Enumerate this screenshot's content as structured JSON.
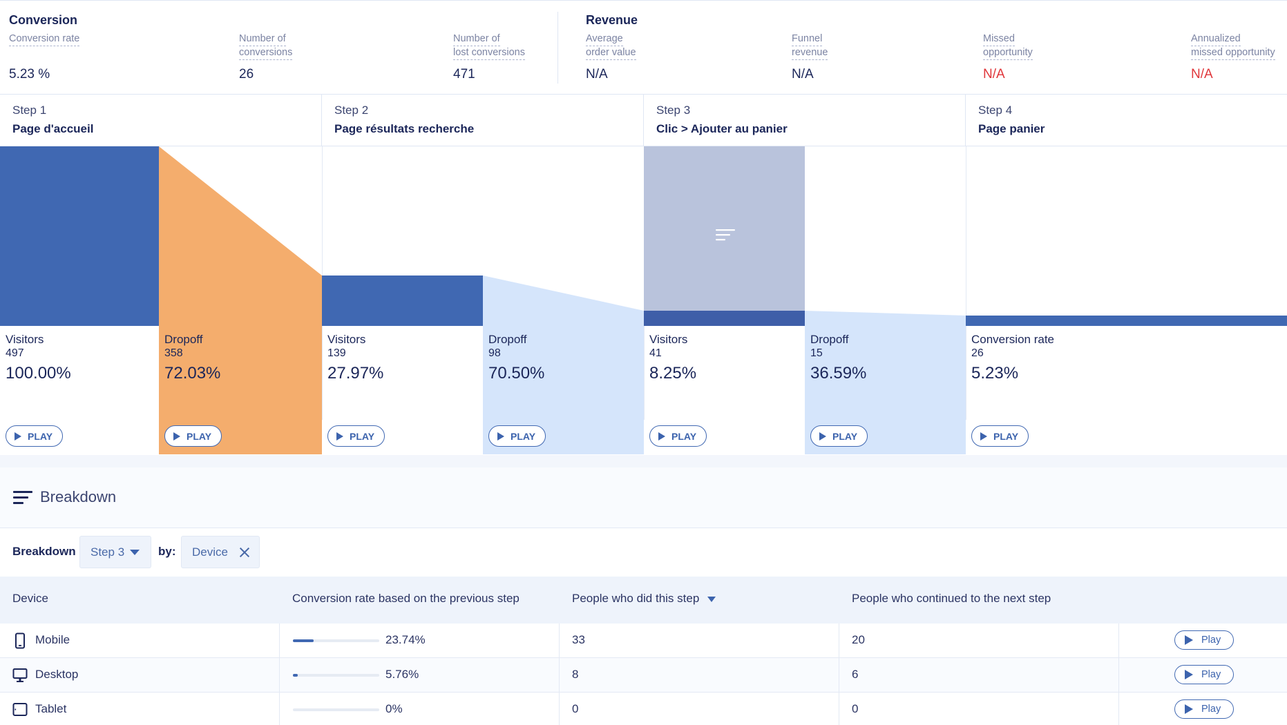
{
  "metrics": {
    "conversion": {
      "title": "Conversion",
      "items": [
        {
          "label_l1": "Conversion rate",
          "label_l2": "",
          "value": "5.23 %"
        },
        {
          "label_l1": "Number of",
          "label_l2": "conversions",
          "value": "26"
        },
        {
          "label_l1": "Number of",
          "label_l2": "lost conversions",
          "value": "471"
        }
      ]
    },
    "revenue": {
      "title": "Revenue",
      "items": [
        {
          "label_l1": "Average",
          "label_l2": "order value",
          "value": "N/A"
        },
        {
          "label_l1": "Funnel",
          "label_l2": "revenue",
          "value": "N/A"
        },
        {
          "label_l1": "Missed",
          "label_l2": "opportunity",
          "value": "N/A"
        },
        {
          "label_l1": "Annualized",
          "label_l2": "missed opportunity",
          "value": "N/A"
        }
      ]
    },
    "colors": {
      "negative": "#e0363a"
    }
  },
  "funnel": {
    "play_label": "PLAY",
    "colors": {
      "visitors": "#4068b2",
      "dropoff_main": "#f4ad6d",
      "dropoff": "#d5e5fb",
      "breakdown_selected": "#b9c3dc"
    },
    "steps": [
      {
        "step": "Step 1",
        "name": "Page d'accueil"
      },
      {
        "step": "Step 2",
        "name": "Page résultats recherche"
      },
      {
        "step": "Step 3",
        "name": "Clic > Ajouter au panier"
      },
      {
        "step": "Step 4",
        "name": "Page panier"
      }
    ],
    "stats": [
      {
        "label": "Visitors",
        "count": "497",
        "pct": "100.00%"
      },
      {
        "label": "Dropoff",
        "count": "358",
        "pct": "72.03%"
      },
      {
        "label": "Visitors",
        "count": "139",
        "pct": "27.97%"
      },
      {
        "label": "Dropoff",
        "count": "98",
        "pct": "70.50%"
      },
      {
        "label": "Visitors",
        "count": "41",
        "pct": "8.25%"
      },
      {
        "label": "Dropoff",
        "count": "15",
        "pct": "36.59%"
      },
      {
        "label": "Conversion rate",
        "count": "26",
        "pct": "5.23%"
      }
    ]
  },
  "breakdown": {
    "title": "Breakdown",
    "filter_label": "Breakdown",
    "step_select": "Step 3",
    "by_label": "by:",
    "dimension": "Device",
    "table": {
      "headers": [
        "Device",
        "Conversion rate based on the previous step",
        "People who did this step",
        "People who continued to the next step"
      ],
      "play_label": "Play",
      "rows": [
        {
          "device": "Mobile",
          "icon": "mobile-icon",
          "rate": "23.74%",
          "rate_value": 23.74,
          "did": "33",
          "continued": "20"
        },
        {
          "device": "Desktop",
          "icon": "desktop-icon",
          "rate": "5.76%",
          "rate_value": 5.76,
          "did": "8",
          "continued": "6"
        },
        {
          "device": "Tablet",
          "icon": "tablet-icon",
          "rate": "0%",
          "rate_value": 0,
          "did": "0",
          "continued": "0"
        }
      ]
    }
  }
}
